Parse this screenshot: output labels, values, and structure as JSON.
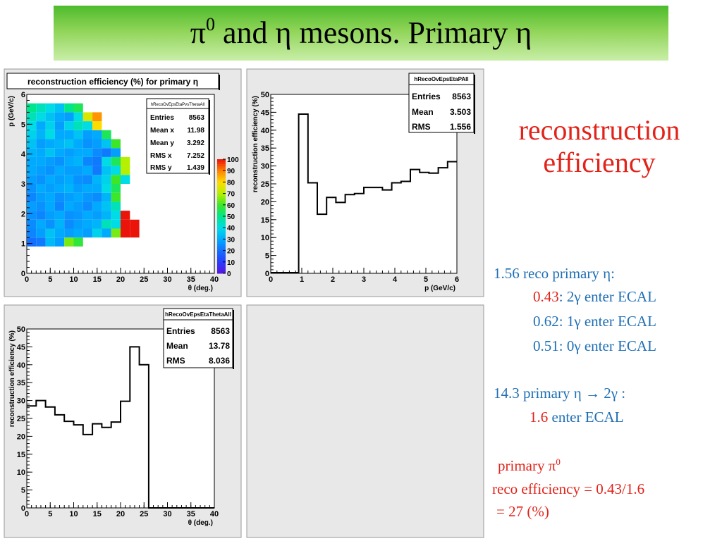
{
  "slide": {
    "title": {
      "pre": "π",
      "sup": "0",
      "post": " and η mesons. Primary η"
    }
  },
  "notes": {
    "heading_line1": "reconstruction",
    "heading_line2": "efficiency",
    "reco_primary": "1.56 reco primary η:",
    "enter_2g_value": "0.43",
    "enter_2g_text": ": 2γ enter ECAL",
    "enter_1g": "0.62: 1γ enter ECAL",
    "enter_0g": "0.51: 0γ enter ECAL",
    "primary_decay_pre": "14.3 primary η",
    "primary_decay_arrow": "→",
    "primary_decay_post": " 2γ :",
    "enter_ecal_value": "1.6",
    "enter_ecal_text": " enter ECAL",
    "primary_pi0_pre": "primary π",
    "primary_pi0_sup": "0",
    "reco_eff_line": "reco efficiency  = 0.43/1.6",
    "result_line": "= 27 (%)"
  },
  "colors": {
    "title_green": "#6cc640",
    "note_blue": "#1f6fb5",
    "note_red": "#e2231a",
    "panel_bg": "#e8e8e8"
  },
  "chart_data": [
    {
      "type": "heatmap",
      "title": "reconstruction efficiency (%) for primary η",
      "xlabel": "θ (deg.)",
      "ylabel": "p (GeV/c)",
      "xlim": [
        0,
        40
      ],
      "ylim": [
        0,
        6
      ],
      "xticks": [
        0,
        5,
        10,
        15,
        20,
        25,
        30,
        35,
        40
      ],
      "yticks": [
        0,
        1,
        2,
        3,
        4,
        5,
        6
      ],
      "color_scale": {
        "min": 0,
        "max": 100,
        "ticks": [
          0,
          10,
          20,
          30,
          40,
          50,
          60,
          70,
          80,
          90,
          100
        ]
      },
      "bin_width_x": 2,
      "bin_height_y": 0.3,
      "y_start": 0.9,
      "rows": [
        [
          20,
          22,
          33,
          28,
          65,
          58
        ],
        [
          24,
          28,
          35,
          30,
          28,
          30,
          28,
          38,
          30,
          65,
          100,
          100
        ],
        [
          25,
          30,
          26,
          32,
          25,
          28,
          30,
          32,
          45,
          40,
          100,
          100
        ],
        [
          26,
          24,
          28,
          30,
          26,
          27,
          30,
          28,
          32,
          40,
          100
        ],
        [
          28,
          26,
          30,
          24,
          30,
          28,
          25,
          30,
          35,
          45
        ],
        [
          24,
          28,
          30,
          26,
          28,
          30,
          27,
          25,
          32,
          60
        ],
        [
          26,
          30,
          28,
          30,
          32,
          28,
          30,
          30,
          40,
          55
        ],
        [
          28,
          26,
          30,
          28,
          30,
          26,
          25,
          32,
          38,
          60,
          40
        ],
        [
          30,
          28,
          26,
          30,
          28,
          28,
          30,
          22,
          35,
          40,
          70
        ],
        [
          30,
          30,
          28,
          26,
          30,
          32,
          24,
          22,
          40,
          55,
          70
        ],
        [
          32,
          30,
          35,
          30,
          28,
          30,
          30,
          25,
          22,
          28
        ],
        [
          35,
          28,
          30,
          32,
          35,
          30,
          26,
          28,
          35,
          60
        ],
        [
          38,
          32,
          40,
          30,
          30,
          35,
          28,
          30,
          55
        ],
        [
          40,
          30,
          38,
          28,
          38,
          45,
          40,
          80
        ],
        [
          45,
          40,
          35,
          30,
          28,
          40,
          75,
          88
        ],
        [
          50,
          45,
          40,
          35,
          50,
          55
        ]
      ],
      "stats": {
        "name": "hRecoOvEpsEtaPvsThetaAll",
        "entries": [
          "Entries",
          "8563"
        ],
        "mean_x": [
          "Mean x",
          "11.98"
        ],
        "mean_y": [
          "Mean y",
          "3.292"
        ],
        "rms_x": [
          "RMS x",
          "7.252"
        ],
        "rms_y": [
          "RMS y",
          "1.439"
        ]
      }
    },
    {
      "type": "line",
      "style": "histogram",
      "xlabel": "p (GeV/c)",
      "ylabel": "reconstruction efficiency (%)",
      "xlim": [
        0,
        6
      ],
      "ylim": [
        0,
        50
      ],
      "xticks": [
        0,
        1,
        2,
        3,
        4,
        5,
        6
      ],
      "yticks": [
        0,
        5,
        10,
        15,
        20,
        25,
        30,
        35,
        40,
        45,
        50
      ],
      "bin_width": 0.3,
      "values": [
        0.2,
        0.2,
        0.2,
        44.5,
        25.3,
        16.5,
        21.2,
        19.8,
        22.0,
        22.3,
        24.0,
        24.0,
        23.3,
        25.3,
        25.7,
        29.0,
        28.2,
        28.0,
        29.5,
        31.2
      ],
      "stats": {
        "name": "hRecoOvEpsEtaPAll",
        "entries": [
          "Entries",
          "8563"
        ],
        "mean": [
          "Mean",
          "3.503"
        ],
        "rms": [
          "RMS",
          "1.556"
        ]
      }
    },
    {
      "type": "line",
      "style": "histogram",
      "xlabel": "θ (deg.)",
      "ylabel": "reconstruction efficiency (%)",
      "xlim": [
        0,
        40
      ],
      "ylim": [
        0,
        50
      ],
      "xticks": [
        0,
        5,
        10,
        15,
        20,
        25,
        30,
        35,
        40
      ],
      "yticks": [
        0,
        5,
        10,
        15,
        20,
        25,
        30,
        35,
        40,
        45,
        50
      ],
      "bin_width": 2,
      "values": [
        28.5,
        30.0,
        28.2,
        26.0,
        24.2,
        23.2,
        20.5,
        23.5,
        22.5,
        24.0,
        29.8,
        45.0,
        40.0,
        0,
        0,
        0,
        0,
        0,
        0,
        0
      ],
      "stats": {
        "name": "hRecoOvEpsEtaThetaAll",
        "entries": [
          "Entries",
          "8563"
        ],
        "mean": [
          "Mean",
          "13.78"
        ],
        "rms": [
          "RMS",
          "8.036"
        ]
      }
    }
  ]
}
